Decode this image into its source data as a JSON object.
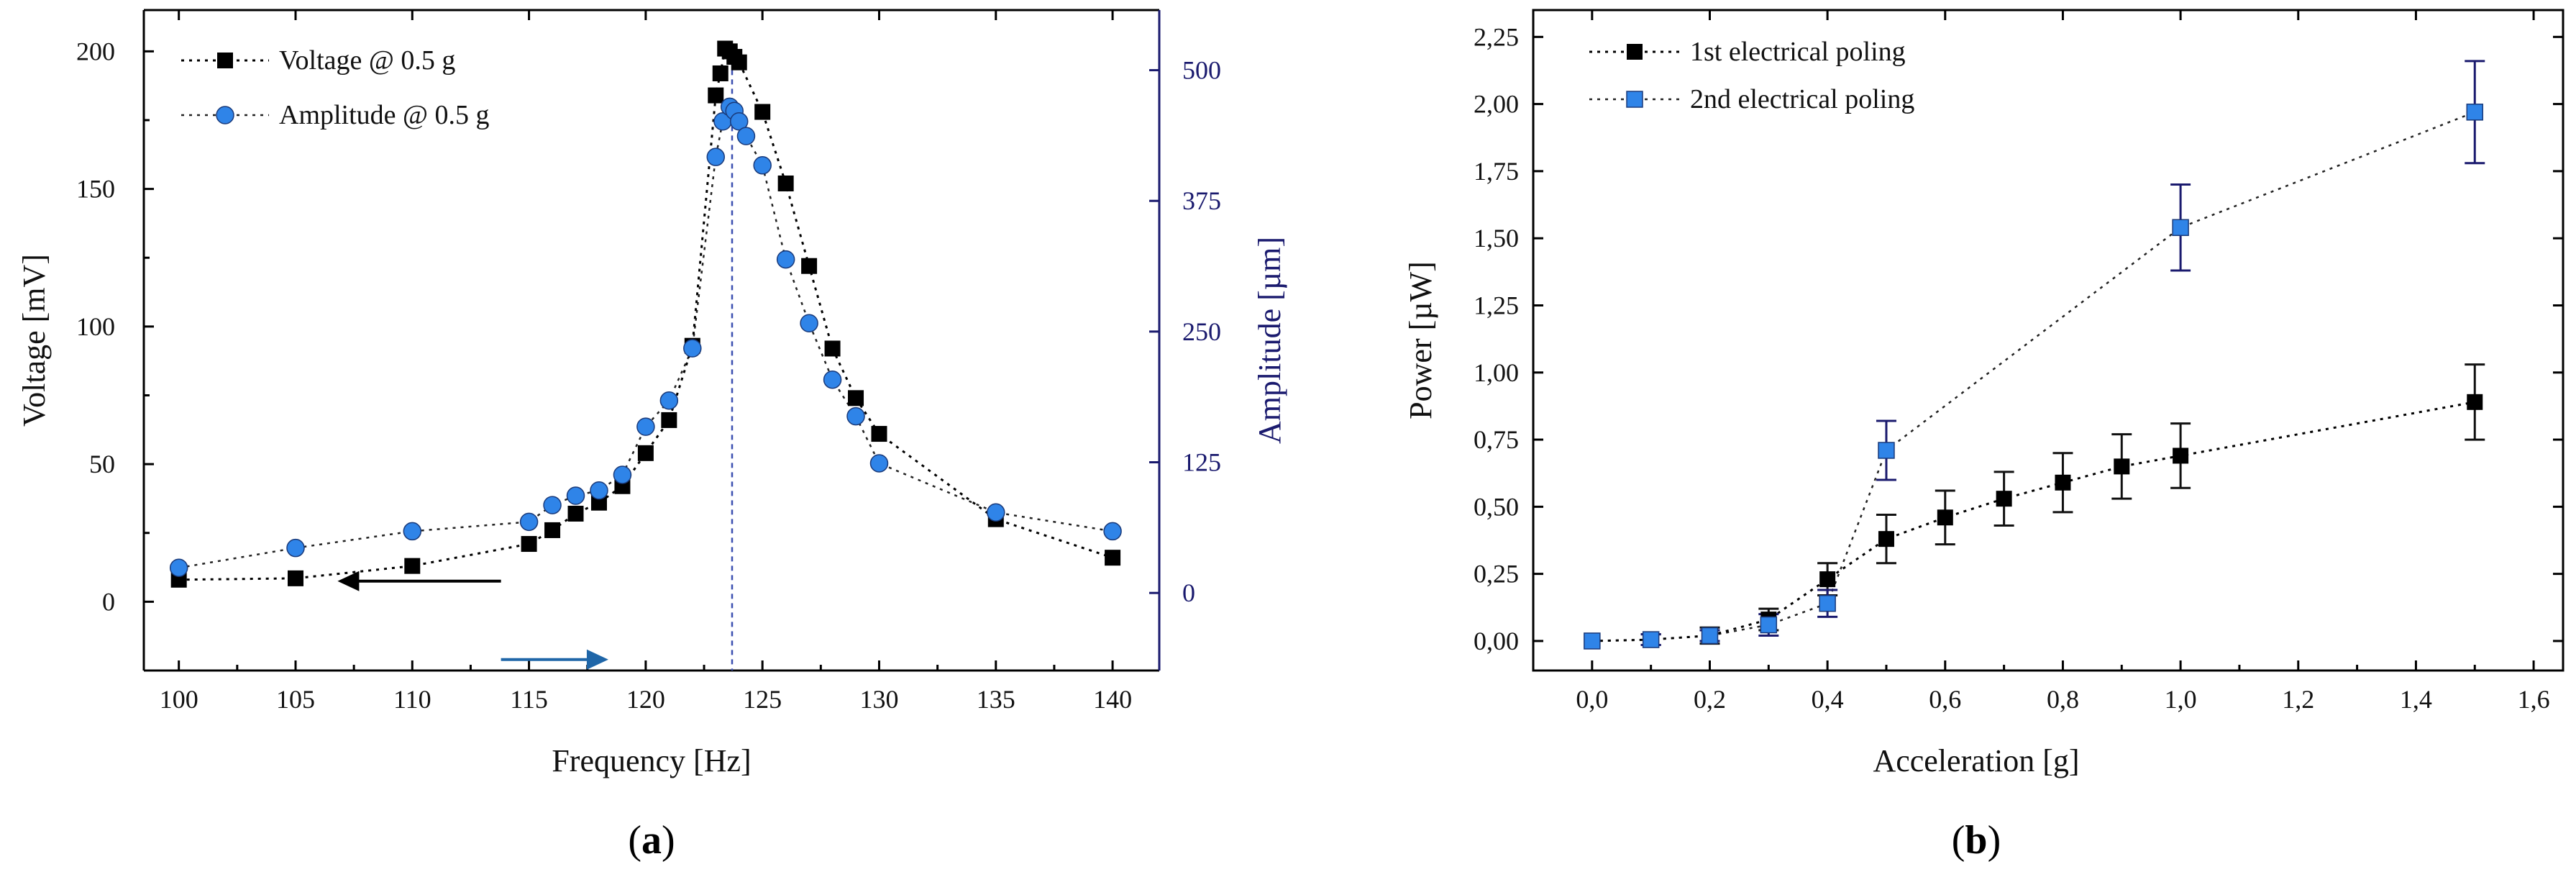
{
  "chart_data": [
    {
      "type": "line",
      "panel_label": "a",
      "xlabel": "Frequency  [Hz]",
      "ylabel": "Voltage  [mV]",
      "y2label": "Amplitude [µm]",
      "xlim": [
        98.5,
        142
      ],
      "ylim": [
        -25,
        215
      ],
      "y2lim": [
        -74.2,
        557.5
      ],
      "xticks": [
        "100",
        "105",
        "110",
        "115",
        "120",
        "125",
        "130",
        "135",
        "140"
      ],
      "yticks": [
        "0",
        "50",
        "100",
        "150",
        "200"
      ],
      "y2ticks": [
        "0",
        "125",
        "250",
        "375",
        "500"
      ],
      "resonance_frequency": 123.7,
      "series": [
        {
          "name": "Voltage @ 0.5 g",
          "marker": "square",
          "color": "#000000",
          "x": [
            100,
            105,
            110,
            115,
            116,
            117,
            118,
            119,
            120,
            121,
            122,
            123,
            123.2,
            123.4,
            123.6,
            123.8,
            124,
            125,
            126,
            127,
            128,
            129,
            130,
            135,
            140
          ],
          "y": [
            8,
            8.5,
            13,
            21,
            26,
            32,
            36,
            42,
            54,
            66,
            93,
            184,
            192,
            201,
            200,
            198,
            196,
            178,
            152,
            122,
            92,
            74,
            61,
            30,
            16
          ]
        },
        {
          "name": "Amplitude @ 0.5 g",
          "marker": "circle",
          "color": "#2f84e8",
          "x": [
            100,
            105,
            110,
            115,
            116,
            117,
            118,
            119,
            120,
            121,
            122,
            123,
            123.3,
            123.6,
            123.8,
            124,
            124.3,
            125,
            126,
            127,
            128,
            129,
            130,
            135,
            140
          ],
          "y": [
            24,
            43,
            59,
            68,
            84,
            93,
            98,
            113,
            159,
            184,
            234,
            417,
            451,
            465,
            461,
            451,
            437,
            409,
            319,
            258,
            204,
            169,
            124,
            77,
            59
          ]
        }
      ],
      "annotations": [
        "left arrow: Voltage axis",
        "right arrow: Amplitude axis"
      ]
    },
    {
      "type": "scatter",
      "panel_label": "b",
      "xlabel": "Acceleration  [g]",
      "ylabel": "Power  [µW]",
      "xlim": [
        -0.1,
        1.65
      ],
      "ylim": [
        -0.11,
        2.35
      ],
      "xticks": [
        "0,0",
        "0,2",
        "0,4",
        "0,6",
        "0,8",
        "1,0",
        "1,2",
        "1,4",
        "1,6"
      ],
      "yticks": [
        "0,00",
        "0,25",
        "0,50",
        "0,75",
        "1,00",
        "1,25",
        "1,50",
        "1,75",
        "2,00",
        "2,25"
      ],
      "series": [
        {
          "name": "1st electrical poling",
          "marker": "square",
          "color": "#000000",
          "x": [
            0,
            0.1,
            0.2,
            0.3,
            0.4,
            0.5,
            0.6,
            0.7,
            0.8,
            0.9,
            1.0,
            1.5
          ],
          "y": [
            0.0,
            0.005,
            0.02,
            0.08,
            0.23,
            0.38,
            0.46,
            0.53,
            0.59,
            0.65,
            0.69,
            0.89
          ],
          "err": [
            0.0,
            0.02,
            0.03,
            0.04,
            0.06,
            0.09,
            0.1,
            0.1,
            0.11,
            0.12,
            0.12,
            0.14
          ]
        },
        {
          "name": "2nd electrical poling",
          "marker": "square",
          "color": "#2f84e8",
          "x": [
            0,
            0.1,
            0.2,
            0.3,
            0.4,
            0.5,
            1.0,
            1.5
          ],
          "y": [
            0.0,
            0.005,
            0.02,
            0.06,
            0.14,
            0.71,
            1.54,
            1.97
          ],
          "err": [
            0.0,
            0.02,
            0.02,
            0.04,
            0.05,
            0.11,
            0.16,
            0.19
          ]
        }
      ]
    }
  ]
}
